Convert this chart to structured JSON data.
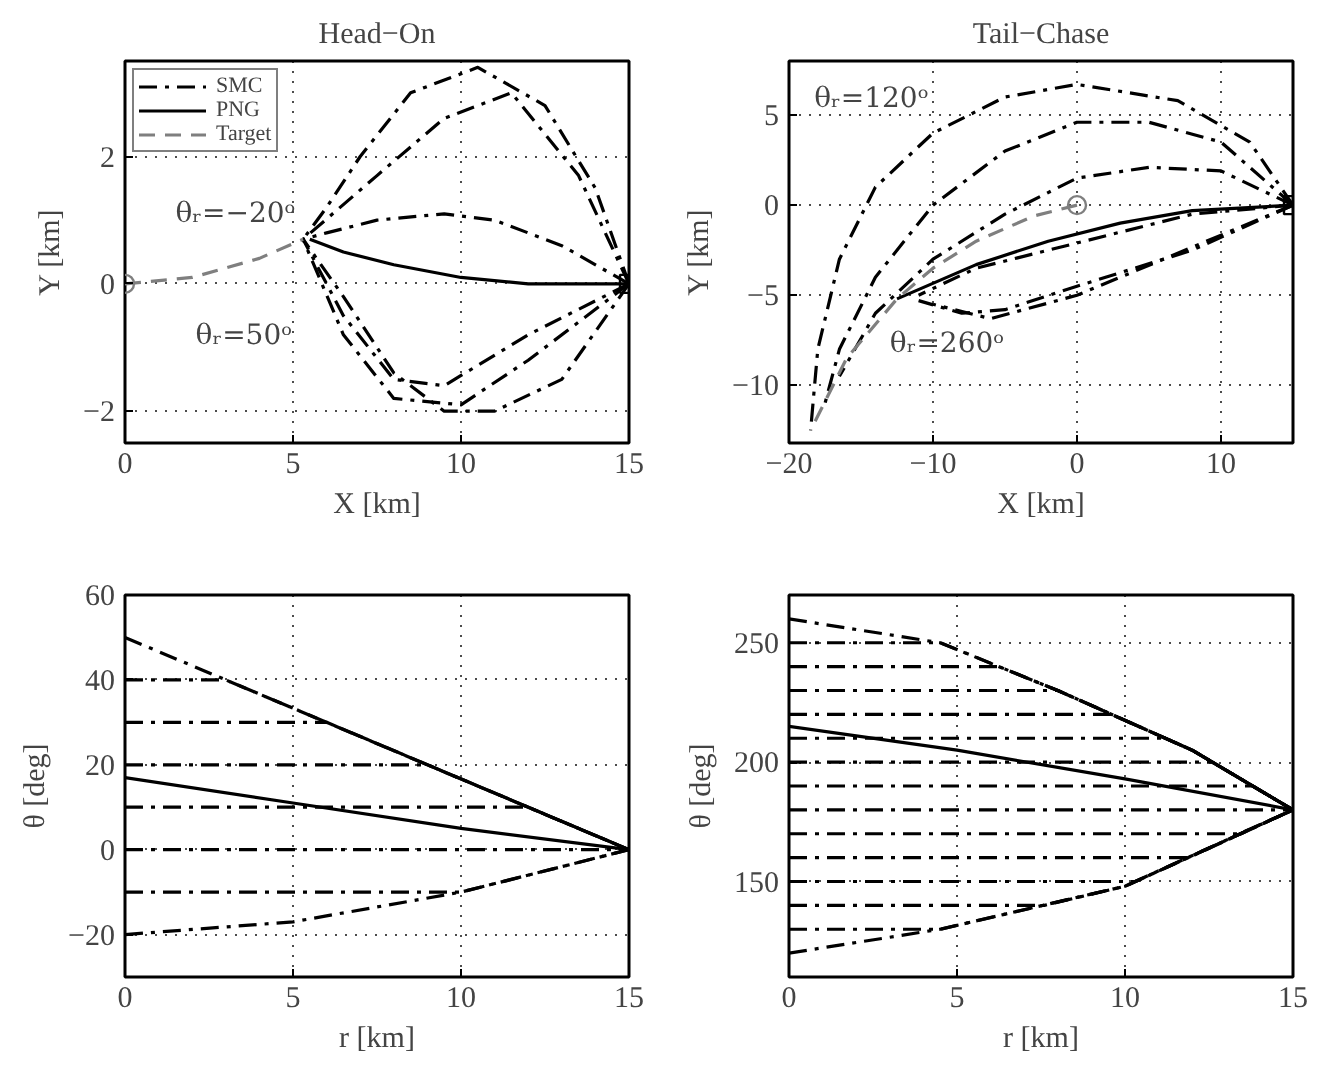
{
  "chart_data": [
    {
      "type": "line",
      "title": "Head−On",
      "xlabel": "X [km]",
      "ylabel": "Y [km]",
      "xlim": [
        0,
        15
      ],
      "ylim": [
        -2.5,
        3.5
      ],
      "xticks": [
        0,
        5,
        10,
        15
      ],
      "yticks": [
        {
          "value": -2,
          "label": "−2"
        },
        0,
        2
      ],
      "grid": true,
      "legend": "top left",
      "annotations": [
        "θᵣ=−20ᵒ",
        "θᵣ=50ᵒ"
      ],
      "series": [
        {
          "name": "SMC",
          "color": "#000000",
          "line_style": "dashdot",
          "x": [
            15,
            14,
            12.5,
            10.5,
            8.5,
            7,
            6,
            5.3
          ],
          "values": [
            0,
            1.5,
            2.8,
            3.4,
            3.0,
            2.0,
            1.2,
            0.7
          ]
        },
        {
          "color": "#000000",
          "line_style": "dashdot",
          "x": [
            15,
            13.5,
            11.5,
            9.5,
            7.5,
            5.3
          ],
          "values": [
            0,
            1.7,
            3.0,
            2.6,
            1.7,
            0.7
          ]
        },
        {
          "color": "#000000",
          "line_style": "dashdot",
          "x": [
            15,
            13,
            11,
            9.5,
            7.5,
            6,
            5.3
          ],
          "values": [
            0,
            0.6,
            1.0,
            1.1,
            1.0,
            0.8,
            0.7
          ]
        },
        {
          "color": "#000000",
          "line_style": "dashdot",
          "x": [
            15,
            12,
            9.5,
            8,
            6.5,
            5.3
          ],
          "values": [
            0,
            -0.8,
            -1.6,
            -1.5,
            -0.5,
            0.7
          ]
        },
        {
          "color": "#000000",
          "line_style": "dashdot",
          "x": [
            15,
            12,
            10,
            8,
            6.5,
            5.3
          ],
          "values": [
            0,
            -1.2,
            -1.9,
            -1.8,
            -0.8,
            0.7
          ]
        },
        {
          "color": "#000000",
          "line_style": "dashdot",
          "x": [
            15,
            13,
            11,
            9.5,
            8,
            6.5,
            5.3
          ],
          "values": [
            0,
            -1.5,
            -2.0,
            -2.0,
            -1.4,
            -0.2,
            0.7
          ]
        },
        {
          "name": "PNG",
          "color": "#000000",
          "line_style": "solid",
          "x": [
            15,
            12,
            10,
            8,
            6.5,
            5.5
          ],
          "values": [
            0,
            0,
            0.1,
            0.3,
            0.5,
            0.7
          ]
        },
        {
          "name": "Target",
          "color": "#7f7f7f",
          "line_style": "dashed",
          "x": [
            0,
            2,
            4,
            5.3
          ],
          "values": [
            0,
            0.1,
            0.4,
            0.7
          ]
        },
        {
          "type": "scatter",
          "marker": "circle",
          "color": "#7f7f7f",
          "x": [
            0
          ],
          "values": [
            0
          ]
        },
        {
          "type": "scatter",
          "marker": "square",
          "color": "#000000",
          "x": [
            15
          ],
          "values": [
            0
          ]
        }
      ]
    },
    {
      "type": "line",
      "title": "Tail−Chase",
      "xlabel": "X [km]",
      "ylabel": "Y [km]",
      "xlim": [
        -20,
        15
      ],
      "ylim": [
        -13.2,
        8
      ],
      "xticks": [
        {
          "value": -20,
          "label": "−20"
        },
        {
          "value": -10,
          "label": "−10"
        },
        0,
        10
      ],
      "yticks": [
        {
          "value": -10,
          "label": "−10"
        },
        {
          "value": -5,
          "label": "−5"
        },
        0,
        5
      ],
      "grid": true,
      "annotations": [
        "θᵣ=120ᵒ",
        "θᵣ=260ᵒ"
      ],
      "series": [
        {
          "color": "#000000",
          "line_style": "dashdot",
          "x": [
            15,
            12,
            7,
            0,
            -5,
            -10,
            -14,
            -16.5,
            -18,
            -18.5
          ],
          "values": [
            0,
            3.5,
            5.8,
            6.7,
            6,
            4,
            1,
            -3,
            -8,
            -12.5
          ]
        },
        {
          "color": "#000000",
          "line_style": "dashdot",
          "x": [
            15,
            10,
            5,
            0,
            -5,
            -10,
            -14,
            -16.5,
            -17.5
          ],
          "values": [
            0,
            3.5,
            4.6,
            4.6,
            3,
            0,
            -4,
            -8,
            -11
          ]
        },
        {
          "color": "#000000",
          "line_style": "dashdot",
          "x": [
            15,
            10,
            5,
            0,
            -5,
            -10,
            -14,
            -16.5
          ],
          "values": [
            0,
            1.9,
            2.1,
            1.5,
            -0.5,
            -3,
            -6,
            -9.5
          ]
        },
        {
          "color": "#000000",
          "line_style": "dashdot",
          "x": [
            15,
            8,
            3,
            -2,
            -7,
            -11
          ],
          "values": [
            0,
            -0.5,
            -1.5,
            -2.5,
            -3.5,
            -5
          ]
        },
        {
          "color": "#000000",
          "line_style": "dashdot",
          "x": [
            15,
            8,
            0,
            -5,
            -8,
            -11
          ],
          "values": [
            0,
            -2.5,
            -4.5,
            -5.8,
            -6,
            -5.3
          ]
        },
        {
          "color": "#000000",
          "line_style": "dashdot",
          "x": [
            15,
            6,
            0,
            -6,
            -10
          ],
          "values": [
            0,
            -3,
            -5,
            -6.3,
            -5.5
          ]
        },
        {
          "color": "#000000",
          "line_style": "solid",
          "x": [
            15,
            8,
            3,
            -2,
            -7,
            -12.5
          ],
          "values": [
            0,
            -0.3,
            -1,
            -2,
            -3.3,
            -5.2
          ]
        },
        {
          "color": "#7f7f7f",
          "line_style": "dashed",
          "x": [
            0,
            -3,
            -7,
            -10,
            -12.5,
            -16,
            -18.5
          ],
          "values": [
            0,
            -0.6,
            -2,
            -3.5,
            -5.2,
            -8.5,
            -12.5
          ]
        },
        {
          "type": "scatter",
          "marker": "circle",
          "color": "#7f7f7f",
          "x": [
            0
          ],
          "values": [
            0
          ]
        },
        {
          "type": "scatter",
          "marker": "square",
          "color": "#000000",
          "x": [
            15
          ],
          "values": [
            0
          ]
        }
      ]
    },
    {
      "type": "line",
      "xlabel": "r [km]",
      "ylabel": "θ [deg]",
      "xlim": [
        0,
        15
      ],
      "ylim": [
        -30,
        60
      ],
      "xticks": [
        0,
        5,
        10,
        15
      ],
      "yticks": [
        {
          "value": -20,
          "label": "−20"
        },
        0,
        20,
        40,
        60
      ],
      "grid": true,
      "series": [
        {
          "color": "#000000",
          "line_style": "dashdot",
          "x": [
            0,
            15
          ],
          "values": [
            50,
            0
          ]
        },
        {
          "color": "#000000",
          "line_style": "dashdot",
          "x": [
            0,
            3,
            15
          ],
          "values": [
            40,
            40,
            0
          ]
        },
        {
          "color": "#000000",
          "line_style": "dashdot",
          "x": [
            0,
            6,
            15
          ],
          "values": [
            30,
            30,
            0
          ]
        },
        {
          "color": "#000000",
          "line_style": "dashdot",
          "x": [
            0,
            9,
            15
          ],
          "values": [
            20,
            20,
            0
          ]
        },
        {
          "color": "#000000",
          "line_style": "dashdot",
          "x": [
            0,
            12,
            15
          ],
          "values": [
            10,
            10,
            0
          ]
        },
        {
          "color": "#000000",
          "line_style": "dashdot",
          "x": [
            0,
            14.5,
            15
          ],
          "values": [
            0,
            0,
            0
          ]
        },
        {
          "color": "#000000",
          "line_style": "dashdot",
          "x": [
            0,
            10,
            15
          ],
          "values": [
            -10,
            -10,
            0
          ]
        },
        {
          "color": "#000000",
          "line_style": "dashdot",
          "x": [
            0,
            5,
            10,
            15
          ],
          "values": [
            -20,
            -17,
            -10,
            0
          ]
        },
        {
          "color": "#000000",
          "line_style": "solid",
          "x": [
            0,
            5,
            10,
            15
          ],
          "values": [
            17,
            11,
            5,
            0
          ]
        }
      ]
    },
    {
      "type": "line",
      "xlabel": "r [km]",
      "ylabel": "θ [deg]",
      "xlim": [
        0,
        15
      ],
      "ylim": [
        110,
        270
      ],
      "xticks": [
        0,
        5,
        10,
        15
      ],
      "yticks": [
        150,
        200,
        250
      ],
      "grid": true,
      "series": [
        {
          "color": "#000000",
          "line_style": "dashdot",
          "x": [
            0,
            4.5,
            8,
            12,
            15
          ],
          "values": [
            260,
            250,
            230,
            205,
            180
          ]
        },
        {
          "color": "#000000",
          "line_style": "dashdot",
          "x": [
            0,
            4.5,
            8,
            12,
            15
          ],
          "values": [
            250,
            250,
            230,
            205,
            180
          ]
        },
        {
          "color": "#000000",
          "line_style": "dashdot",
          "x": [
            0,
            6.25,
            8,
            12,
            15
          ],
          "values": [
            240,
            240,
            230,
            205,
            180
          ]
        },
        {
          "color": "#000000",
          "line_style": "dashdot",
          "x": [
            0,
            8,
            12,
            15
          ],
          "values": [
            230,
            230,
            205,
            180
          ]
        },
        {
          "color": "#000000",
          "line_style": "dashdot",
          "x": [
            0,
            9.6,
            12,
            15
          ],
          "values": [
            220,
            220,
            205,
            180
          ]
        },
        {
          "color": "#000000",
          "line_style": "dashdot",
          "x": [
            0,
            11.2,
            12,
            15
          ],
          "values": [
            210,
            210,
            205,
            180
          ]
        },
        {
          "color": "#000000",
          "line_style": "dashdot",
          "x": [
            0,
            12.6,
            15
          ],
          "values": [
            200,
            200,
            180
          ]
        },
        {
          "color": "#000000",
          "line_style": "dashdot",
          "x": [
            0,
            13.8,
            15
          ],
          "values": [
            190,
            190,
            180
          ]
        },
        {
          "color": "#000000",
          "line_style": "dashdot",
          "x": [
            0,
            15
          ],
          "values": [
            180,
            180
          ]
        },
        {
          "color": "#000000",
          "line_style": "dashdot",
          "x": [
            0,
            13.4,
            15
          ],
          "values": [
            170,
            170,
            180
          ]
        },
        {
          "color": "#000000",
          "line_style": "dashdot",
          "x": [
            0,
            11.9,
            15
          ],
          "values": [
            160,
            160,
            180
          ]
        },
        {
          "color": "#000000",
          "line_style": "dashdot",
          "x": [
            0,
            10.3,
            15
          ],
          "values": [
            150,
            150,
            180
          ]
        },
        {
          "color": "#000000",
          "line_style": "dashdot",
          "x": [
            0,
            7.6,
            10,
            15
          ],
          "values": [
            140,
            140,
            148,
            180
          ]
        },
        {
          "color": "#000000",
          "line_style": "dashdot",
          "x": [
            0,
            4.5,
            10,
            15
          ],
          "values": [
            130,
            130,
            148,
            180
          ]
        },
        {
          "color": "#000000",
          "line_style": "dashdot",
          "x": [
            0,
            4.5,
            10,
            15
          ],
          "values": [
            120,
            130,
            148,
            180
          ]
        },
        {
          "color": "#000000",
          "line_style": "solid",
          "x": [
            0,
            5,
            10,
            15
          ],
          "values": [
            215,
            205,
            193,
            180
          ]
        }
      ]
    }
  ]
}
